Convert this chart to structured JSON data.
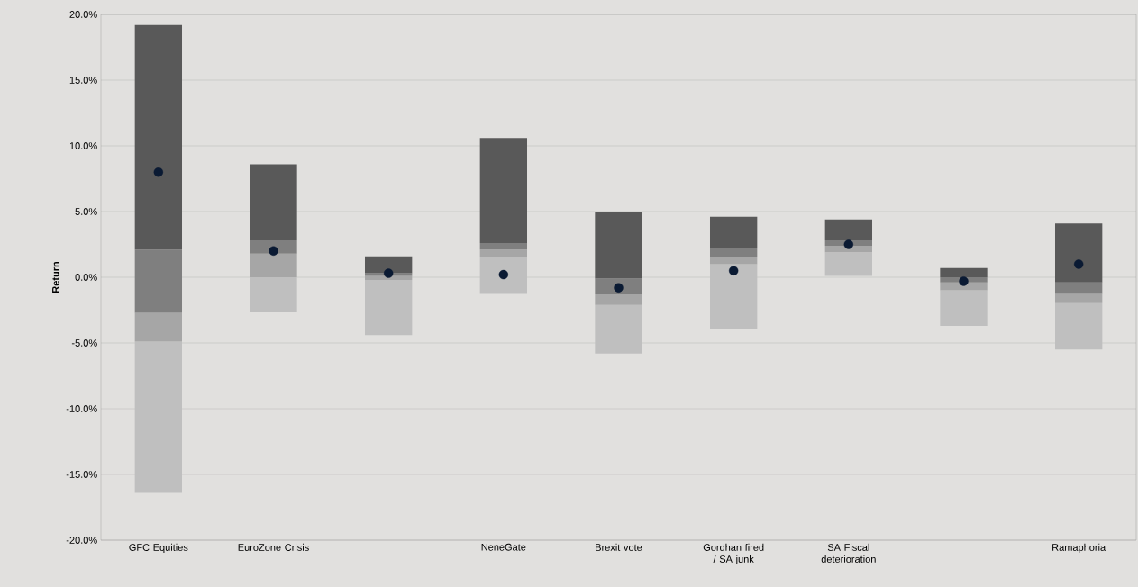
{
  "chart_data": {
    "type": "bar",
    "ylabel": "Return",
    "categories": [
      "GFC Equities",
      "EuroZone Crisis",
      null,
      "NeneGate",
      "Brexit vote",
      "Gordhan fired / SA junk",
      "SA Fiscal deterioration",
      null,
      "Ramaphoria"
    ],
    "series": [
      {
        "color": "#bfbfbf",
        "base": [
          -16.4,
          -2.6,
          -4.4,
          -1.2,
          -5.8,
          -3.9,
          0.1,
          -3.7,
          -5.5
        ],
        "values": [
          11.5,
          2.6,
          4.2,
          2.7,
          3.7,
          4.9,
          1.8,
          2.7,
          3.6
        ]
      },
      {
        "color": "#a6a6a6",
        "base": [
          -4.9,
          0.0,
          -0.2,
          1.5,
          -2.1,
          1.0,
          1.9,
          -1.0,
          -1.9
        ],
        "values": [
          2.2,
          1.8,
          0.3,
          0.6,
          0.8,
          0.5,
          0.5,
          0.6,
          0.7
        ]
      },
      {
        "color": "#7f7f7f",
        "base": [
          -2.7,
          1.8,
          0.1,
          2.1,
          -1.3,
          1.5,
          2.4,
          -0.4,
          -1.2
        ],
        "values": [
          4.8,
          1.0,
          0.2,
          0.5,
          1.2,
          0.7,
          0.4,
          0.4,
          0.8
        ]
      },
      {
        "color": "#595959",
        "base": [
          2.1,
          2.8,
          0.3,
          2.6,
          -0.1,
          2.2,
          2.8,
          0.0,
          -0.4
        ],
        "values": [
          17.1,
          5.8,
          1.3,
          8.0,
          5.1,
          2.4,
          1.6,
          0.7,
          4.5
        ]
      },
      {
        "type": "scatter",
        "color": "#0a1a33",
        "marker": "circle",
        "values": [
          8.0,
          2.0,
          0.3,
          0.2,
          -0.8,
          0.5,
          2.5,
          -0.3,
          1.0
        ]
      }
    ],
    "ylim": [
      -20,
      20
    ],
    "yticks": [
      {
        "value": -20,
        "label": "-20.0%"
      },
      {
        "value": -15,
        "label": "-15.0%"
      },
      {
        "value": -10,
        "label": "-10.0%"
      },
      {
        "value": -5,
        "label": "-5.0%"
      },
      {
        "value": 0,
        "label": "0.0%"
      },
      {
        "value": 5,
        "label": "5.0%"
      },
      {
        "value": 10,
        "label": "10.0%"
      },
      {
        "value": 15,
        "label": "15.0%"
      },
      {
        "value": 20,
        "label": "20.0%"
      }
    ],
    "grid": "y"
  }
}
